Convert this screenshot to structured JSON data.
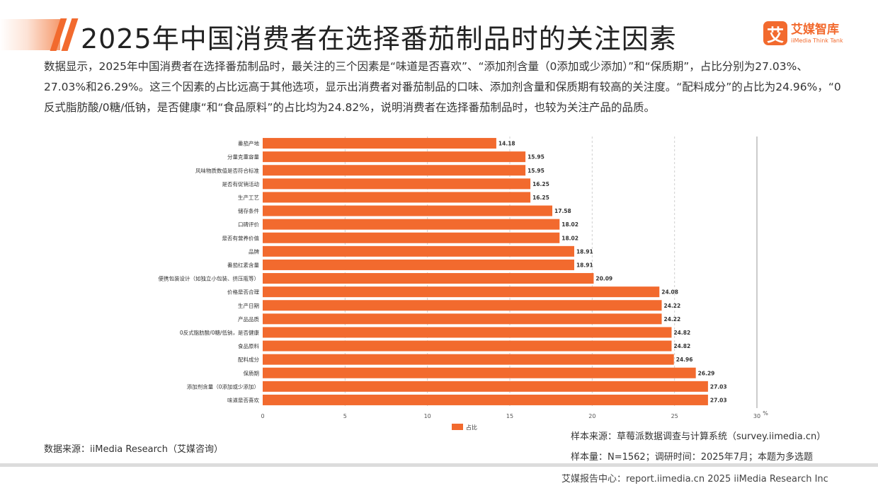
{
  "header": {
    "title": "2025年中国消费者在选择番茄制品时的关注因素",
    "logo_mark": "艾",
    "logo_name": "艾媒智库",
    "logo_tagline": "iiMedia Think Tank"
  },
  "intro": "数据显示，2025年中国消费者在选择番茄制品时，最关注的三个因素是“味道是否喜欢”、“添加剂含量（0添加或少添加）”和“保质期”，占比分别为27.03%、27.03%和26.29%。这三个因素的占比远高于其他选项，显示出消费者对番茄制品的口味、添加剂含量和保质期有较高的关注度。“配料成分”的占比为24.96%，“0反式脂肪酸/0糖/低钠，是否健康“和“食品原料”的占比均为24.82%，说明消费者在选择番茄制品时，也较为关注产品的品质。",
  "chart_data": {
    "type": "bar",
    "orientation": "horizontal",
    "categories": [
      "番茄产地",
      "分量克重容量",
      "风味物质数值是否符合标准",
      "是否有促销活动",
      "生产工艺",
      "储存条件",
      "口碑评价",
      "是否有营养价值",
      "品牌",
      "番茄红素含量",
      "便携包装设计（如独立小包装、挤压瓶等）",
      "价格是否合理",
      "生产日期",
      "产品品质",
      "0反式脂肪酸/0糖/低钠，是否健康",
      "食品原料",
      "配料成分",
      "保质期",
      "添加剂含量（0添加或少添加）",
      "味道是否喜欢"
    ],
    "series": [
      {
        "name": "占比",
        "values": [
          14.18,
          15.95,
          15.95,
          16.25,
          16.25,
          17.58,
          18.02,
          18.02,
          18.91,
          18.91,
          20.09,
          24.08,
          24.22,
          24.22,
          24.82,
          24.82,
          24.96,
          26.29,
          27.03,
          27.03
        ],
        "value_labels": [
          "14.18",
          "15.95",
          "15.95",
          "16.25",
          "16.25",
          "17.58",
          "18.02",
          "18.02",
          "18.91",
          "18.91",
          "20.09",
          "24.08",
          "24.22",
          "24.22",
          "24.82",
          "24.82",
          "24.96",
          "26.29",
          "27.03",
          "27.03"
        ]
      }
    ],
    "xlim": [
      0,
      30
    ],
    "xticks": [
      "0",
      "5",
      "10",
      "15",
      "20",
      "25",
      "30"
    ],
    "unit": "%",
    "grid": true,
    "legend_position": "bottom",
    "bar_color": "#f26a2e"
  },
  "sources": {
    "data_source": "数据来源：iiMedia Research（艾媒咨询）",
    "sample_source": "样本来源：草莓派数据调查与计算系统（survey.iimedia.cn）",
    "sample_size": "样本量：N=1562；调研时间：2025年7月；本题为多选题"
  },
  "footer": {
    "text": "艾媒报告中心：report.iimedia.cn  2025 iiMedia Research Inc"
  }
}
